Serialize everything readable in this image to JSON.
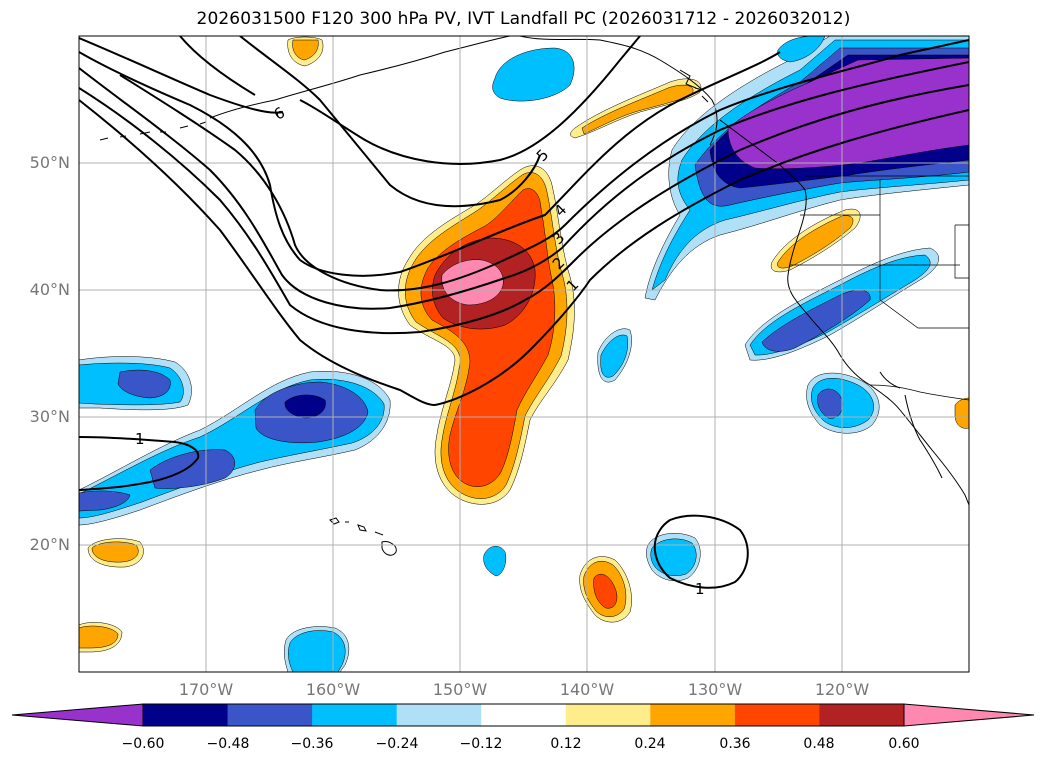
{
  "title": "2026031500 F120 300 hPa PV, IVT Landfall PC (2026031712 - 2026032012)",
  "map": {
    "lon_range": [
      -180,
      -110
    ],
    "lat_range": [
      10,
      60
    ],
    "lat_labels": [
      "50°N",
      "40°N",
      "30°N",
      "20°N"
    ],
    "lon_labels": [
      "170°W",
      "160°W",
      "150°W",
      "140°W",
      "130°W",
      "120°W"
    ],
    "pv_contour_labels": [
      "6",
      "5",
      "4",
      "3",
      "2",
      "1",
      "1",
      "1"
    ]
  },
  "colorbar": {
    "ticks": [
      "−0.60",
      "−0.48",
      "−0.36",
      "−0.24",
      "−0.12",
      "0.12",
      "0.24",
      "0.36",
      "0.48",
      "0.60"
    ],
    "colors": [
      "#9932cc",
      "#00008b",
      "#3a55c8",
      "#00bfff",
      "#b0e0f8",
      "#ffffff",
      "#ffec8b",
      "#ffa500",
      "#ff4500",
      "#b22222",
      "#ff88b0"
    ]
  }
}
